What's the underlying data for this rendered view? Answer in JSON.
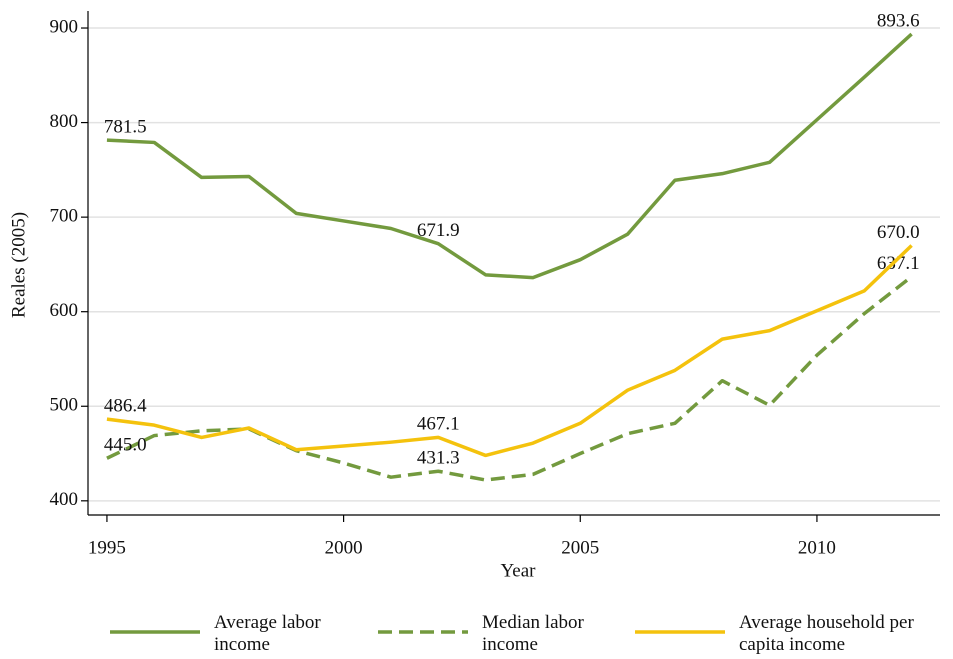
{
  "chart_data": {
    "type": "line",
    "x": [
      1995,
      1996,
      1997,
      1998,
      1999,
      2000,
      2001,
      2002,
      2003,
      2004,
      2005,
      2006,
      2007,
      2008,
      2009,
      2010,
      2011,
      2012
    ],
    "series": [
      {
        "name": "Average labor income",
        "color": "#739a3e",
        "dash": false,
        "values": [
          781.5,
          779,
          742,
          743,
          704,
          696,
          688,
          671.9,
          639,
          636,
          655,
          682,
          739,
          746,
          758,
          803,
          848,
          893.6
        ],
        "value_labels": [
          "781.5",
          null,
          null,
          null,
          null,
          null,
          null,
          "671.9",
          null,
          null,
          null,
          null,
          null,
          null,
          null,
          null,
          null,
          "893.6"
        ]
      },
      {
        "name": "Median labor income",
        "color": "#739a3e",
        "dash": true,
        "values": [
          445,
          469,
          474,
          476,
          453,
          440,
          425,
          431.3,
          422,
          428,
          450,
          471,
          482,
          527,
          501,
          554,
          598,
          637.1
        ],
        "value_labels": [
          "445.0",
          null,
          null,
          null,
          null,
          null,
          null,
          "431.3",
          null,
          null,
          null,
          null,
          null,
          null,
          null,
          null,
          null,
          "637.1"
        ]
      },
      {
        "name": "Average household per capita income",
        "color": "#f4c20d",
        "dash": false,
        "values": [
          486.4,
          480,
          467,
          477,
          454,
          458,
          462,
          467.1,
          448,
          461,
          482,
          517,
          538,
          571,
          580,
          601,
          622,
          670
        ],
        "value_labels": [
          "486.4",
          null,
          null,
          null,
          null,
          null,
          null,
          "467.1",
          null,
          null,
          null,
          null,
          null,
          null,
          null,
          null,
          null,
          "670.0"
        ]
      }
    ],
    "x_label": "Year",
    "y_label": "Reales (2005)",
    "xlim": [
      1994.6,
      2012.6
    ],
    "xticks": [
      1995,
      2000,
      2005,
      2010
    ],
    "ylim": [
      385,
      918
    ],
    "yticks": [
      400,
      500,
      600,
      700,
      800,
      900
    ],
    "grid": true,
    "legend": "bottom"
  }
}
